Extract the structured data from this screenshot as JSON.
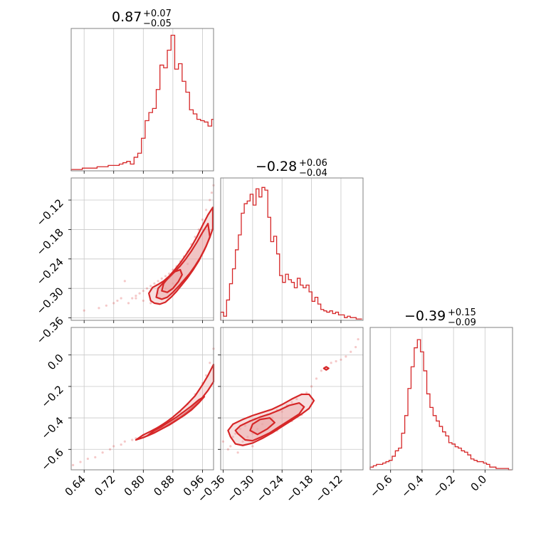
{
  "chart_data": {
    "type": "corner",
    "color": "#d62728",
    "fill_color": "#e8a3a4",
    "grid": true,
    "parameters": [
      {
        "title_main": "0.87",
        "title_plus": "+0.07",
        "title_minus": "−0.05"
      },
      {
        "title_main": "−0.28",
        "title_plus": "+0.06",
        "title_minus": "−0.04"
      },
      {
        "title_main": "−0.39",
        "title_plus": "+0.15",
        "title_minus": "−0.09"
      }
    ],
    "ranges": [
      [
        0.605,
        0.99
      ],
      [
        -0.365,
        -0.075
      ],
      [
        -0.73,
        0.175
      ]
    ],
    "ticks": {
      "p0": {
        "values": [
          0.64,
          0.72,
          0.8,
          0.88,
          0.96
        ],
        "labels": [
          "0.64",
          "0.72",
          "0.80",
          "0.88",
          "0.96"
        ]
      },
      "p1": {
        "values": [
          -0.36,
          -0.3,
          -0.24,
          -0.18,
          -0.12
        ],
        "labels": [
          "−0.36",
          "−0.30",
          "−0.24",
          "−0.18",
          "−0.12"
        ]
      },
      "p2_y": {
        "values": [
          0.0,
          -0.2,
          -0.4,
          -0.6
        ],
        "labels": [
          "0.0",
          "−0.2",
          "−0.4",
          "−0.6"
        ]
      },
      "p2_x": {
        "values": [
          -0.6,
          -0.4,
          -0.2,
          0.0
        ],
        "labels": [
          "−0.6",
          "−0.4",
          "−0.2",
          "0.0"
        ]
      }
    },
    "hist_p0": {
      "x": [
        0.605,
        0.615,
        0.625,
        0.635,
        0.645,
        0.655,
        0.665,
        0.675,
        0.685,
        0.695,
        0.705,
        0.715,
        0.725,
        0.735,
        0.745,
        0.755,
        0.765,
        0.775,
        0.785,
        0.795,
        0.805,
        0.815,
        0.825,
        0.835,
        0.845,
        0.855,
        0.865,
        0.875,
        0.885,
        0.895,
        0.905,
        0.915,
        0.925,
        0.935,
        0.945,
        0.955,
        0.965,
        0.975,
        0.985
      ],
      "y": [
        0.01,
        0.01,
        0.01,
        0.02,
        0.02,
        0.02,
        0.02,
        0.03,
        0.03,
        0.03,
        0.04,
        0.04,
        0.04,
        0.05,
        0.06,
        0.07,
        0.05,
        0.1,
        0.13,
        0.24,
        0.37,
        0.43,
        0.46,
        0.6,
        0.78,
        0.76,
        0.89,
        1.0,
        0.75,
        0.79,
        0.66,
        0.58,
        0.45,
        0.42,
        0.38,
        0.37,
        0.36,
        0.33,
        0.38
      ]
    },
    "hist_p1": {
      "x": [
        -0.365,
        -0.359,
        -0.353,
        -0.347,
        -0.341,
        -0.335,
        -0.329,
        -0.323,
        -0.317,
        -0.311,
        -0.305,
        -0.299,
        -0.293,
        -0.287,
        -0.281,
        -0.275,
        -0.269,
        -0.263,
        -0.257,
        -0.251,
        -0.245,
        -0.239,
        -0.233,
        -0.227,
        -0.221,
        -0.215,
        -0.209,
        -0.203,
        -0.197,
        -0.191,
        -0.185,
        -0.179,
        -0.173,
        -0.167,
        -0.161,
        -0.155,
        -0.149,
        -0.143,
        -0.137,
        -0.131,
        -0.125,
        -0.119,
        -0.113,
        -0.107,
        -0.101,
        -0.095,
        -0.089,
        -0.083
      ],
      "y": [
        0.06,
        0.03,
        0.15,
        0.27,
        0.38,
        0.52,
        0.63,
        0.79,
        0.86,
        0.88,
        0.93,
        0.85,
        0.97,
        0.91,
        0.98,
        0.96,
        0.76,
        0.58,
        0.62,
        0.49,
        0.33,
        0.28,
        0.34,
        0.3,
        0.28,
        0.24,
        0.31,
        0.26,
        0.24,
        0.26,
        0.21,
        0.14,
        0.17,
        0.12,
        0.08,
        0.07,
        0.06,
        0.07,
        0.05,
        0.06,
        0.04,
        0.04,
        0.02,
        0.03,
        0.02,
        0.02,
        0.01,
        0.01
      ]
    },
    "hist_p2": {
      "x": [
        -0.73,
        -0.71,
        -0.69,
        -0.67,
        -0.65,
        -0.63,
        -0.61,
        -0.59,
        -0.57,
        -0.55,
        -0.53,
        -0.51,
        -0.49,
        -0.47,
        -0.45,
        -0.43,
        -0.41,
        -0.39,
        -0.37,
        -0.35,
        -0.33,
        -0.31,
        -0.29,
        -0.27,
        -0.25,
        -0.23,
        -0.21,
        -0.19,
        -0.17,
        -0.15,
        -0.13,
        -0.11,
        -0.09,
        -0.07,
        -0.05,
        -0.03,
        -0.01,
        0.01,
        0.03,
        0.05,
        0.07,
        0.09,
        0.11,
        0.13,
        0.15
      ],
      "y": [
        0.02,
        0.03,
        0.04,
        0.04,
        0.05,
        0.06,
        0.07,
        0.1,
        0.14,
        0.16,
        0.27,
        0.4,
        0.6,
        0.76,
        0.9,
        0.96,
        0.87,
        0.73,
        0.56,
        0.46,
        0.4,
        0.36,
        0.32,
        0.28,
        0.25,
        0.2,
        0.19,
        0.17,
        0.16,
        0.14,
        0.13,
        0.11,
        0.08,
        0.07,
        0.06,
        0.06,
        0.05,
        0.04,
        0.02,
        0.02,
        0.01,
        0.01,
        0.01,
        0.01,
        0.0
      ]
    },
    "scatter_p1_vs_p0": {
      "x": [
        0.64,
        0.68,
        0.7,
        0.72,
        0.73,
        0.74,
        0.76,
        0.77,
        0.78,
        0.79,
        0.8,
        0.81,
        0.82,
        0.83,
        0.84,
        0.85,
        0.86,
        0.87,
        0.88,
        0.89,
        0.9,
        0.91,
        0.92,
        0.93,
        0.94,
        0.95,
        0.96,
        0.97,
        0.98,
        0.985,
        0.99,
        0.75,
        0.78,
        0.8,
        0.82,
        0.84,
        0.86,
        0.88,
        0.9,
        0.92
      ],
      "y": [
        -0.345,
        -0.34,
        -0.335,
        -0.33,
        -0.325,
        -0.32,
        -0.33,
        -0.32,
        -0.315,
        -0.31,
        -0.305,
        -0.3,
        -0.295,
        -0.29,
        -0.285,
        -0.28,
        -0.275,
        -0.27,
        -0.262,
        -0.255,
        -0.245,
        -0.235,
        -0.225,
        -0.21,
        -0.195,
        -0.18,
        -0.16,
        -0.14,
        -0.12,
        -0.105,
        -0.09,
        -0.285,
        -0.32,
        -0.325,
        -0.33,
        -0.31,
        -0.3,
        -0.29,
        -0.27,
        -0.25
      ]
    },
    "contour_p1_vs_p0": [
      {
        "x": [
          0.82,
          0.83,
          0.845,
          0.86,
          0.875,
          0.89,
          0.905,
          0.92,
          0.935,
          0.95,
          0.965,
          0.98,
          0.988,
          0.988,
          0.975,
          0.96,
          0.945,
          0.93,
          0.915,
          0.9,
          0.885,
          0.87,
          0.855,
          0.84,
          0.825,
          0.815,
          0.82
        ],
        "y": [
          -0.325,
          -0.33,
          -0.332,
          -0.328,
          -0.318,
          -0.306,
          -0.292,
          -0.278,
          -0.262,
          -0.244,
          -0.222,
          -0.196,
          -0.178,
          -0.135,
          -0.15,
          -0.172,
          -0.195,
          -0.215,
          -0.232,
          -0.248,
          -0.262,
          -0.275,
          -0.285,
          -0.292,
          -0.298,
          -0.31,
          -0.325
        ]
      },
      {
        "x": [
          0.835,
          0.85,
          0.865,
          0.88,
          0.895,
          0.91,
          0.925,
          0.94,
          0.955,
          0.97,
          0.98,
          0.975,
          0.96,
          0.945,
          0.93,
          0.915,
          0.9,
          0.885,
          0.87,
          0.855,
          0.84,
          0.835
        ],
        "y": [
          -0.318,
          -0.322,
          -0.318,
          -0.308,
          -0.296,
          -0.283,
          -0.27,
          -0.254,
          -0.236,
          -0.214,
          -0.195,
          -0.168,
          -0.186,
          -0.206,
          -0.224,
          -0.24,
          -0.254,
          -0.266,
          -0.278,
          -0.288,
          -0.3,
          -0.318
        ]
      },
      {
        "x": [
          0.85,
          0.865,
          0.88,
          0.895,
          0.905,
          0.9,
          0.885,
          0.87,
          0.855,
          0.85
        ],
        "y": [
          -0.305,
          -0.308,
          -0.3,
          -0.286,
          -0.272,
          -0.262,
          -0.266,
          -0.276,
          -0.29,
          -0.305
        ]
      }
    ],
    "scatter_p2_vs_p0": {
      "x": [
        0.61,
        0.63,
        0.65,
        0.67,
        0.69,
        0.71,
        0.72,
        0.74,
        0.75,
        0.77,
        0.78,
        0.8,
        0.82,
        0.84,
        0.86,
        0.88,
        0.9,
        0.92,
        0.94,
        0.96,
        0.97,
        0.98,
        0.99
      ],
      "y": [
        -0.7,
        -0.68,
        -0.66,
        -0.65,
        -0.62,
        -0.6,
        -0.58,
        -0.57,
        -0.55,
        -0.54,
        -0.53,
        -0.51,
        -0.49,
        -0.46,
        -0.43,
        -0.4,
        -0.36,
        -0.31,
        -0.25,
        -0.18,
        -0.13,
        -0.05,
        0.04
      ]
    },
    "contour_p2_vs_p0": [
      {
        "x": [
          0.78,
          0.8,
          0.82,
          0.84,
          0.86,
          0.88,
          0.9,
          0.92,
          0.94,
          0.96,
          0.975,
          0.99,
          0.99,
          0.975,
          0.96,
          0.94,
          0.92,
          0.9,
          0.88,
          0.86,
          0.84,
          0.82,
          0.8,
          0.78
        ],
        "y": [
          -0.54,
          -0.525,
          -0.505,
          -0.48,
          -0.455,
          -0.425,
          -0.395,
          -0.36,
          -0.32,
          -0.27,
          -0.225,
          -0.17,
          -0.06,
          -0.13,
          -0.19,
          -0.26,
          -0.31,
          -0.355,
          -0.395,
          -0.43,
          -0.46,
          -0.485,
          -0.508,
          -0.54
        ]
      },
      {
        "x": [
          0.81,
          0.83,
          0.85,
          0.87,
          0.89,
          0.91,
          0.93,
          0.95,
          0.965,
          0.95,
          0.93,
          0.91,
          0.89,
          0.87,
          0.85,
          0.83,
          0.81
        ],
        "y": [
          -0.515,
          -0.495,
          -0.47,
          -0.445,
          -0.415,
          -0.385,
          -0.35,
          -0.305,
          -0.265,
          -0.285,
          -0.325,
          -0.36,
          -0.395,
          -0.425,
          -0.455,
          -0.48,
          -0.515
        ]
      }
    ],
    "scatter_p2_vs_p1": {
      "x": [
        -0.36,
        -0.35,
        -0.345,
        -0.34,
        -0.335,
        -0.33,
        -0.325,
        -0.32,
        -0.315,
        -0.31,
        -0.305,
        -0.3,
        -0.295,
        -0.29,
        -0.28,
        -0.27,
        -0.26,
        -0.25,
        -0.24,
        -0.23,
        -0.22,
        -0.21,
        -0.2,
        -0.19,
        -0.18,
        -0.17,
        -0.16,
        -0.15,
        -0.14,
        -0.13,
        -0.12,
        -0.11,
        -0.1,
        -0.09,
        -0.085,
        -0.3,
        -0.28,
        -0.25,
        -0.22,
        -0.2
      ],
      "y": [
        -0.55,
        -0.6,
        -0.58,
        -0.52,
        -0.5,
        -0.62,
        -0.47,
        -0.55,
        -0.45,
        -0.52,
        -0.42,
        -0.5,
        -0.41,
        -0.47,
        -0.44,
        -0.38,
        -0.4,
        -0.35,
        -0.36,
        -0.32,
        -0.3,
        -0.28,
        -0.25,
        -0.24,
        -0.2,
        -0.15,
        -0.1,
        -0.08,
        -0.05,
        -0.04,
        -0.03,
        -0.01,
        0.02,
        0.05,
        0.1,
        -0.58,
        -0.52,
        -0.48,
        -0.42,
        -0.38
      ]
    },
    "contour_p2_vs_p1": [
      {
        "x": [
          -0.345,
          -0.335,
          -0.32,
          -0.3,
          -0.28,
          -0.26,
          -0.24,
          -0.22,
          -0.2,
          -0.185,
          -0.175,
          -0.185,
          -0.2,
          -0.22,
          -0.24,
          -0.26,
          -0.28,
          -0.3,
          -0.32,
          -0.34,
          -0.35,
          -0.345
        ],
        "y": [
          -0.52,
          -0.565,
          -0.575,
          -0.56,
          -0.53,
          -0.495,
          -0.455,
          -0.415,
          -0.375,
          -0.34,
          -0.29,
          -0.25,
          -0.25,
          -0.28,
          -0.315,
          -0.345,
          -0.365,
          -0.385,
          -0.41,
          -0.44,
          -0.48,
          -0.52
        ]
      },
      {
        "x": [
          -0.33,
          -0.315,
          -0.3,
          -0.285,
          -0.265,
          -0.245,
          -0.225,
          -0.205,
          -0.195,
          -0.205,
          -0.225,
          -0.245,
          -0.265,
          -0.285,
          -0.305,
          -0.325,
          -0.335,
          -0.33
        ],
        "y": [
          -0.5,
          -0.54,
          -0.545,
          -0.525,
          -0.495,
          -0.455,
          -0.415,
          -0.375,
          -0.33,
          -0.305,
          -0.32,
          -0.35,
          -0.375,
          -0.395,
          -0.42,
          -0.45,
          -0.48,
          -0.5
        ]
      },
      {
        "x": [
          -0.305,
          -0.29,
          -0.27,
          -0.255,
          -0.265,
          -0.285,
          -0.3,
          -0.305
        ],
        "y": [
          -0.48,
          -0.505,
          -0.47,
          -0.43,
          -0.4,
          -0.41,
          -0.44,
          -0.48
        ]
      },
      {
        "x": [
          -0.155,
          -0.15,
          -0.145,
          -0.15,
          -0.155
        ],
        "y": [
          -0.085,
          -0.095,
          -0.085,
          -0.075,
          -0.085
        ]
      }
    ]
  }
}
